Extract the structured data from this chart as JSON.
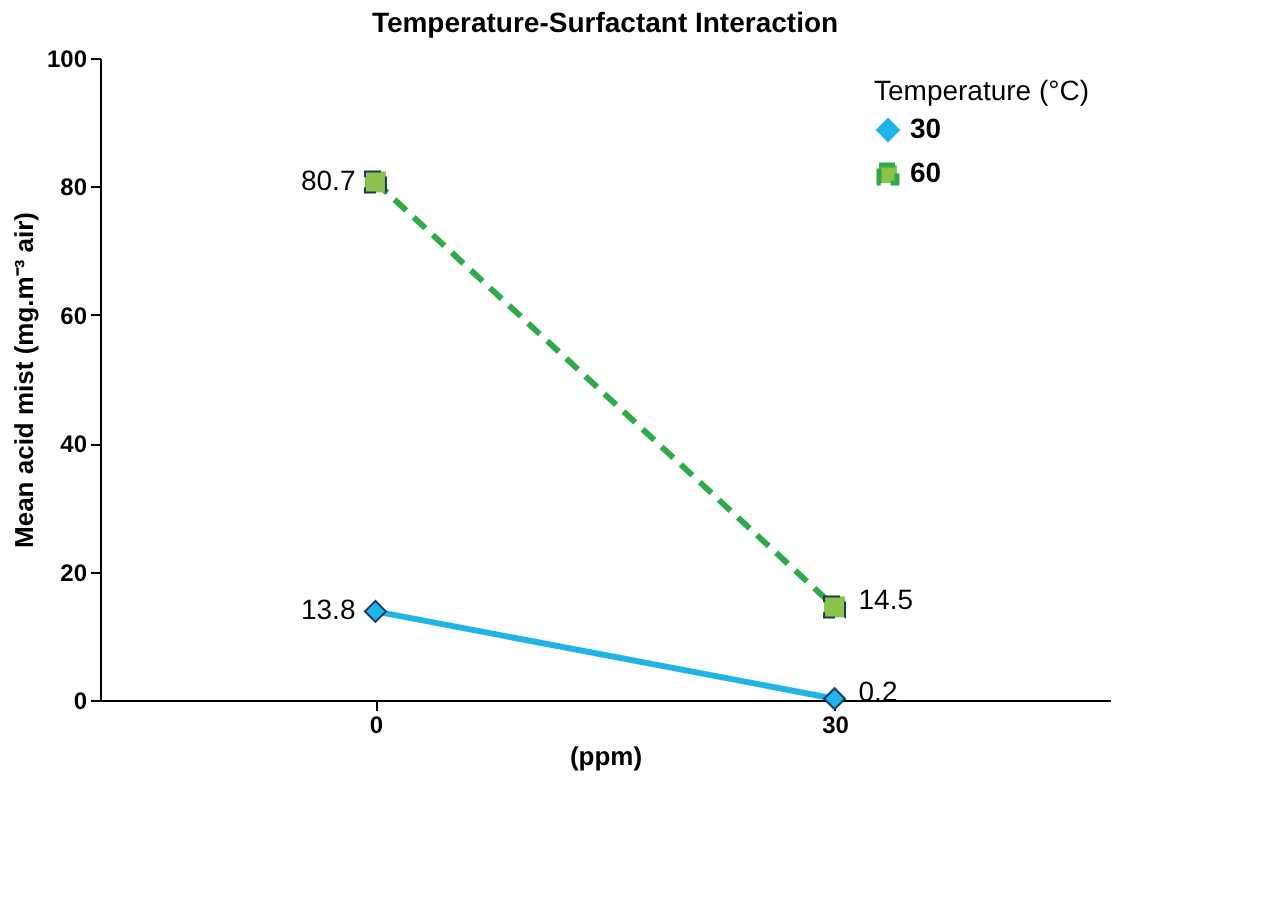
{
  "chart_data": {
    "type": "line",
    "title": "Temperature-Surfactant Interaction",
    "xlabel": "(ppm)",
    "ylabel": "Mean acid mist (mg.m⁻³ air)",
    "legend_title": "Temperature (°C)",
    "categories": [
      "0",
      "30"
    ],
    "series": [
      {
        "name": "30",
        "color": "#1eb4e8",
        "values": [
          13.8,
          0.2
        ],
        "marker": "diamond",
        "line_style": "solid"
      },
      {
        "name": "60",
        "color": "#2eaa4a",
        "values": [
          80.7,
          14.5
        ],
        "marker": "square",
        "line_style": "dashed"
      }
    ],
    "ylim": [
      0,
      100
    ],
    "yticks": [
      0,
      20,
      40,
      60,
      80,
      100
    ],
    "grid": false,
    "legend": "top right",
    "data_labels": true
  }
}
